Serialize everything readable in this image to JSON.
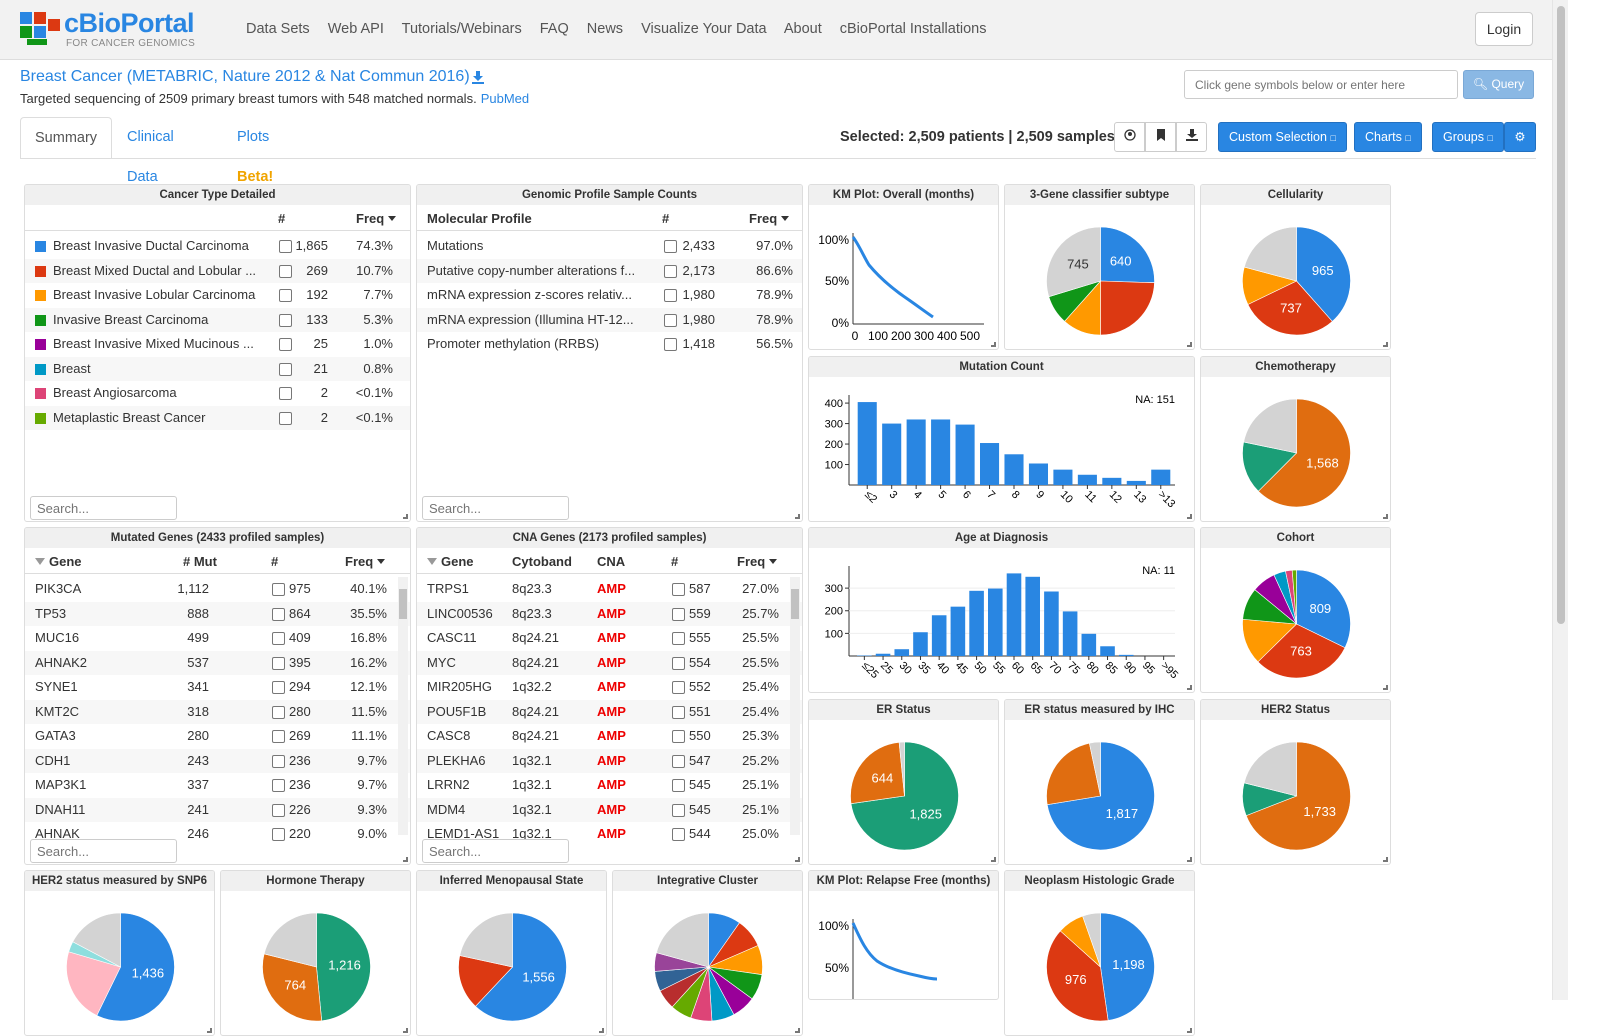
{
  "nav": {
    "logo_name": "cBioPortal",
    "logo_sub": "FOR CANCER GENOMICS",
    "links": [
      "Data Sets",
      "Web API",
      "Tutorials/Webinars",
      "FAQ",
      "News",
      "Visualize Your Data",
      "About",
      "cBioPortal Installations"
    ],
    "login": "Login"
  },
  "study": {
    "title": "Breast Cancer (METABRIC, Nature 2012 & Nat Commun 2016)",
    "description": "Targeted sequencing of 2509 primary breast tumors with 548 matched normals.",
    "pubmed": "PubMed"
  },
  "query": {
    "placeholder": "Click gene symbols below or enter here",
    "button": "Query"
  },
  "tabs": {
    "summary": "Summary",
    "clinical": "Clinical Data",
    "plots": "Plots",
    "beta": "Beta!"
  },
  "toolbar": {
    "selected": "Selected: 2,509 patients | 2,509 samples",
    "custom_selection": "Custom Selection",
    "charts": "Charts",
    "groups": "Groups",
    "icons": [
      "user-circle-icon",
      "bookmark-icon",
      "download-icon",
      "gear-icon"
    ]
  },
  "colors": {
    "blue": "#2986e2",
    "red": "#dc3912",
    "orange": "#ff9900",
    "green": "#109618",
    "purple": "#990099",
    "teal": "#0099c6",
    "pink": "#dd4477",
    "lime": "#66aa00",
    "gray": "#d3d3d3",
    "darkorange": "#e06d10",
    "seagreen": "#1b9e77",
    "amp": "#ee0000"
  },
  "cancer_type": {
    "title": "Cancer Type Detailed",
    "headers": {
      "count": "#",
      "freq": "Freq"
    },
    "rows": [
      {
        "name": "Breast Invasive Ductal Carcinoma",
        "count": "1,865",
        "freq": "74.3%",
        "color": "#2986e2"
      },
      {
        "name": "Breast Mixed Ductal and Lobular ...",
        "count": "269",
        "freq": "10.7%",
        "color": "#dc3912"
      },
      {
        "name": "Breast Invasive Lobular Carcinoma",
        "count": "192",
        "freq": "7.7%",
        "color": "#ff9900"
      },
      {
        "name": "Invasive Breast Carcinoma",
        "count": "133",
        "freq": "5.3%",
        "color": "#109618"
      },
      {
        "name": "Breast Invasive Mixed Mucinous ...",
        "count": "25",
        "freq": "1.0%",
        "color": "#990099"
      },
      {
        "name": "Breast",
        "count": "21",
        "freq": "0.8%",
        "color": "#0099c6"
      },
      {
        "name": "Breast Angiosarcoma",
        "count": "2",
        "freq": "<0.1%",
        "color": "#dd4477"
      },
      {
        "name": "Metaplastic Breast Cancer",
        "count": "2",
        "freq": "<0.1%",
        "color": "#66aa00"
      }
    ],
    "search": "Search..."
  },
  "genomic_profile": {
    "title": "Genomic Profile Sample Counts",
    "headers": {
      "profile": "Molecular Profile",
      "count": "#",
      "freq": "Freq"
    },
    "rows": [
      {
        "name": "Mutations",
        "count": "2,433",
        "freq": "97.0%"
      },
      {
        "name": "Putative copy-number alterations f...",
        "count": "2,173",
        "freq": "86.6%"
      },
      {
        "name": "mRNA expression z-scores relativ...",
        "count": "1,980",
        "freq": "78.9%"
      },
      {
        "name": "mRNA expression (Illumina HT-12...",
        "count": "1,980",
        "freq": "78.9%"
      },
      {
        "name": "Promoter methylation (RRBS)",
        "count": "1,418",
        "freq": "56.5%"
      }
    ],
    "search": "Search..."
  },
  "mutated_genes": {
    "title": "Mutated Genes (2433 profiled samples)",
    "headers": {
      "gene": "Gene",
      "mut": "# Mut",
      "count": "#",
      "freq": "Freq"
    },
    "rows": [
      {
        "gene": "PIK3CA",
        "mut": "1,112",
        "count": "975",
        "freq": "40.1%"
      },
      {
        "gene": "TP53",
        "mut": "888",
        "count": "864",
        "freq": "35.5%"
      },
      {
        "gene": "MUC16",
        "mut": "499",
        "count": "409",
        "freq": "16.8%"
      },
      {
        "gene": "AHNAK2",
        "mut": "537",
        "count": "395",
        "freq": "16.2%"
      },
      {
        "gene": "SYNE1",
        "mut": "341",
        "count": "294",
        "freq": "12.1%"
      },
      {
        "gene": "KMT2C",
        "mut": "318",
        "count": "280",
        "freq": "11.5%"
      },
      {
        "gene": "GATA3",
        "mut": "280",
        "count": "269",
        "freq": "11.1%"
      },
      {
        "gene": "CDH1",
        "mut": "243",
        "count": "236",
        "freq": "9.7%"
      },
      {
        "gene": "MAP3K1",
        "mut": "337",
        "count": "236",
        "freq": "9.7%"
      },
      {
        "gene": "DNAH11",
        "mut": "241",
        "count": "226",
        "freq": "9.3%"
      },
      {
        "gene": "AHNAK",
        "mut": "246",
        "count": "220",
        "freq": "9.0%"
      }
    ],
    "search": "Search..."
  },
  "cna_genes": {
    "title": "CNA Genes (2173 profiled samples)",
    "headers": {
      "gene": "Gene",
      "cytoband": "Cytoband",
      "cna": "CNA",
      "count": "#",
      "freq": "Freq"
    },
    "rows": [
      {
        "gene": "TRPS1",
        "cytoband": "8q23.3",
        "cna": "AMP",
        "count": "587",
        "freq": "27.0%"
      },
      {
        "gene": "LINC00536",
        "cytoband": "8q23.3",
        "cna": "AMP",
        "count": "559",
        "freq": "25.7%"
      },
      {
        "gene": "CASC11",
        "cytoband": "8q24.21",
        "cna": "AMP",
        "count": "555",
        "freq": "25.5%"
      },
      {
        "gene": "MYC",
        "cytoband": "8q24.21",
        "cna": "AMP",
        "count": "554",
        "freq": "25.5%"
      },
      {
        "gene": "MIR205HG",
        "cytoband": "1q32.2",
        "cna": "AMP",
        "count": "552",
        "freq": "25.4%"
      },
      {
        "gene": "POU5F1B",
        "cytoband": "8q24.21",
        "cna": "AMP",
        "count": "551",
        "freq": "25.4%"
      },
      {
        "gene": "CASC8",
        "cytoband": "8q24.21",
        "cna": "AMP",
        "count": "550",
        "freq": "25.3%"
      },
      {
        "gene": "PLEKHA6",
        "cytoband": "1q32.1",
        "cna": "AMP",
        "count": "547",
        "freq": "25.2%"
      },
      {
        "gene": "LRRN2",
        "cytoband": "1q32.1",
        "cna": "AMP",
        "count": "545",
        "freq": "25.1%"
      },
      {
        "gene": "MDM4",
        "cytoband": "1q32.1",
        "cna": "AMP",
        "count": "545",
        "freq": "25.1%"
      },
      {
        "gene": "LEMD1-AS1",
        "cytoband": "1q32.1",
        "cna": "AMP",
        "count": "544",
        "freq": "25.0%"
      }
    ],
    "search": "Search..."
  },
  "pies": {
    "gene3": {
      "title": "3-Gene classifier subtype",
      "slices": [
        {
          "value": 640,
          "color": "#2986e2",
          "label": "640"
        },
        {
          "value": 615,
          "color": "#dc3912"
        },
        {
          "value": 290,
          "color": "#ff9900"
        },
        {
          "value": 219,
          "color": "#109618"
        },
        {
          "value": 745,
          "color": "#d3d3d3",
          "label": "745"
        }
      ]
    },
    "cellularity": {
      "title": "Cellularity",
      "slices": [
        {
          "value": 965,
          "color": "#2986e2",
          "label": "965"
        },
        {
          "value": 737,
          "color": "#dc3912",
          "label": "737"
        },
        {
          "value": 284,
          "color": "#ff9900"
        },
        {
          "value": 523,
          "color": "#d3d3d3"
        }
      ]
    },
    "chemotherapy": {
      "title": "Chemotherapy",
      "slices": [
        {
          "value": 1568,
          "color": "#e06d10",
          "label": "1,568"
        },
        {
          "value": 396,
          "color": "#1b9e77"
        },
        {
          "value": 545,
          "color": "#d3d3d3"
        }
      ]
    },
    "cohort": {
      "title": "Cohort",
      "slices": [
        {
          "value": 809,
          "color": "#2986e2",
          "label": "809"
        },
        {
          "value": 763,
          "color": "#dc3912",
          "label": "763"
        },
        {
          "value": 345,
          "color": "#ff9900"
        },
        {
          "value": 240,
          "color": "#109618"
        },
        {
          "value": 180,
          "color": "#990099"
        },
        {
          "value": 90,
          "color": "#0099c6"
        },
        {
          "value": 50,
          "color": "#dd4477"
        },
        {
          "value": 32,
          "color": "#66aa00"
        }
      ]
    },
    "er_status": {
      "title": "ER Status",
      "slices": [
        {
          "value": 1825,
          "color": "#1b9e77",
          "label": "1,825"
        },
        {
          "value": 644,
          "color": "#e06d10",
          "label": "644"
        },
        {
          "value": 40,
          "color": "#d3d3d3"
        }
      ]
    },
    "er_ihc": {
      "title": "ER status measured by IHC",
      "slices": [
        {
          "value": 1817,
          "color": "#2986e2",
          "label": "1,817"
        },
        {
          "value": 609,
          "color": "#e06d10"
        },
        {
          "value": 83,
          "color": "#d3d3d3"
        }
      ]
    },
    "her2": {
      "title": "HER2 Status",
      "slices": [
        {
          "value": 1733,
          "color": "#e06d10",
          "label": "1,733"
        },
        {
          "value": 247,
          "color": "#1b9e77"
        },
        {
          "value": 529,
          "color": "#d3d3d3"
        }
      ]
    },
    "her2_snp6": {
      "title": "HER2 status measured by SNP6",
      "slices": [
        {
          "value": 1436,
          "color": "#2986e2",
          "label": "1,436"
        },
        {
          "value": 560,
          "color": "#ffb6c1"
        },
        {
          "value": 80,
          "color": "#8edede"
        },
        {
          "value": 433,
          "color": "#d3d3d3"
        }
      ]
    },
    "hormone": {
      "title": "Hormone Therapy",
      "slices": [
        {
          "value": 1216,
          "color": "#1b9e77",
          "label": "1,216"
        },
        {
          "value": 764,
          "color": "#e06d10",
          "label": "764"
        },
        {
          "value": 529,
          "color": "#d3d3d3"
        }
      ]
    },
    "menopausal": {
      "title": "Inferred Menopausal State",
      "slices": [
        {
          "value": 1556,
          "color": "#2986e2",
          "label": "1,556"
        },
        {
          "value": 411,
          "color": "#dc3912"
        },
        {
          "value": 542,
          "color": "#d3d3d3"
        }
      ]
    },
    "integrative": {
      "title": "Integrative Cluster",
      "slices": [
        {
          "value": 244,
          "color": "#2986e2"
        },
        {
          "value": 220,
          "color": "#dc3912"
        },
        {
          "value": 220,
          "color": "#ff9900"
        },
        {
          "value": 195,
          "color": "#109618"
        },
        {
          "value": 180,
          "color": "#990099"
        },
        {
          "value": 170,
          "color": "#0099c6"
        },
        {
          "value": 160,
          "color": "#dd4477"
        },
        {
          "value": 160,
          "color": "#66aa00"
        },
        {
          "value": 150,
          "color": "#b82e2e"
        },
        {
          "value": 150,
          "color": "#316395"
        },
        {
          "value": 140,
          "color": "#994499"
        },
        {
          "value": 520,
          "color": "#d3d3d3"
        }
      ]
    },
    "grade": {
      "title": "Neoplasm Histologic Grade",
      "slices": [
        {
          "value": 1198,
          "color": "#2986e2",
          "label": "1,198"
        },
        {
          "value": 976,
          "color": "#dc3912",
          "label": "976"
        },
        {
          "value": 200,
          "color": "#ff9900"
        },
        {
          "value": 135,
          "color": "#d3d3d3"
        }
      ]
    }
  },
  "km_overall": {
    "title": "KM Plot: Overall (months)",
    "yticks": [
      "100%",
      "50%",
      "0%"
    ],
    "xticks": [
      "0",
      "100",
      "200",
      "300",
      "400",
      "500"
    ]
  },
  "km_relapse": {
    "title": "KM Plot: Relapse Free (months)",
    "yticks": [
      "100%",
      "50%"
    ]
  },
  "chart_data": [
    {
      "type": "bar",
      "title": "Mutation Count",
      "categories": [
        "≤2",
        "3",
        "4",
        "5",
        "6",
        "7",
        "8",
        "9",
        "10",
        "11",
        "12",
        "13",
        ">13"
      ],
      "values": [
        405,
        300,
        320,
        320,
        295,
        205,
        150,
        105,
        75,
        50,
        35,
        20,
        75
      ],
      "ylim": [
        0,
        420
      ],
      "yticks": [
        100,
        200,
        300,
        400
      ],
      "na": "NA: 151"
    },
    {
      "type": "bar",
      "title": "Age at Diagnosis",
      "categories": [
        "≤25",
        "25",
        "30",
        "35",
        "40",
        "45",
        "50",
        "55",
        "60",
        "65",
        "70",
        "75",
        "80",
        "85",
        "90",
        "95",
        ">95"
      ],
      "values": [
        2,
        10,
        30,
        105,
        180,
        218,
        288,
        298,
        365,
        350,
        285,
        197,
        98,
        43,
        5,
        0,
        0
      ],
      "ylim": [
        0,
        380
      ],
      "yticks": [
        100,
        200,
        300
      ],
      "na": "NA: 11"
    }
  ]
}
